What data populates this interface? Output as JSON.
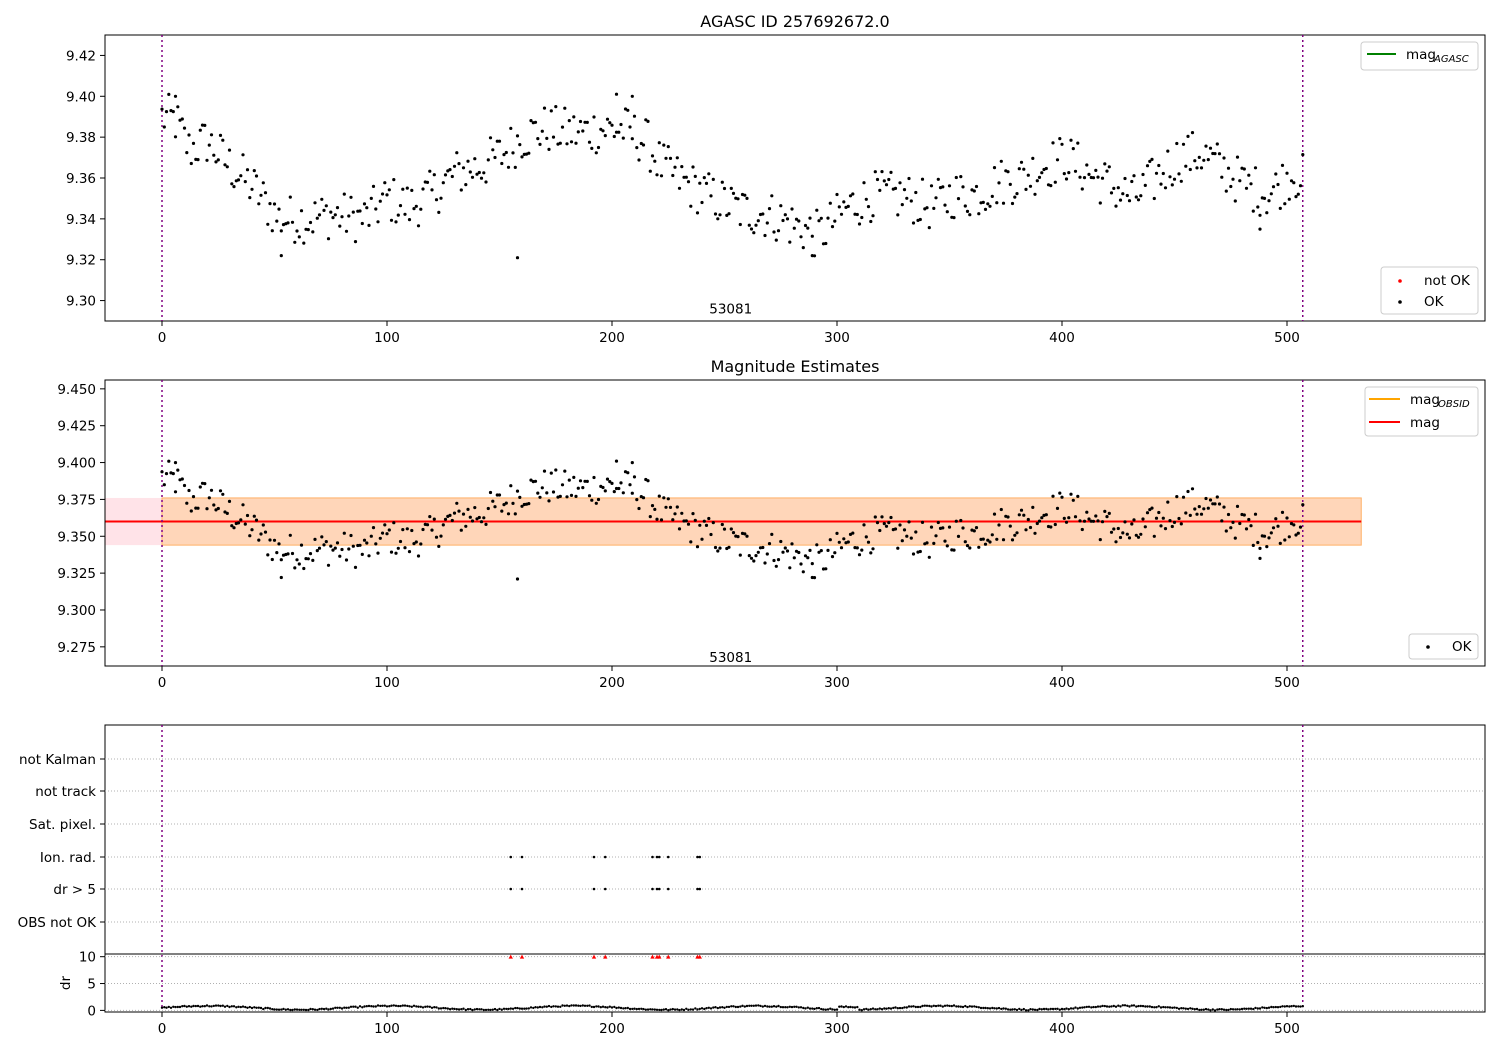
{
  "chart_data": [
    {
      "type": "scatter",
      "title": "AGASC ID 257692672.0",
      "xlabel": "",
      "ylabel": "",
      "xlim": [
        -25,
        590
      ],
      "ylim": [
        9.29,
        9.43
      ],
      "xticks": [
        "0",
        "100",
        "200",
        "300",
        "400",
        "500"
      ],
      "yticks": [
        "9.30",
        "9.32",
        "9.34",
        "9.36",
        "9.38",
        "9.40",
        "9.42"
      ],
      "vlines_x": [
        0,
        507
      ],
      "annotation": {
        "text": "53081",
        "x": 253,
        "y": 9.296
      },
      "legend_upper": {
        "position": "upper right",
        "entries": [
          {
            "label": "mag",
            "sub": "AGASC",
            "color": "#008000"
          }
        ]
      },
      "legend_lower": {
        "position": "lower right",
        "entries": [
          {
            "label": "not OK",
            "color": "#ff0000"
          },
          {
            "label": "OK",
            "color": "#000000"
          }
        ]
      },
      "anchors": [
        [
          0,
          9.39
        ],
        [
          6,
          9.388
        ],
        [
          12,
          9.374
        ],
        [
          20,
          9.378
        ],
        [
          30,
          9.366
        ],
        [
          40,
          9.356
        ],
        [
          52,
          9.34
        ],
        [
          65,
          9.34
        ],
        [
          75,
          9.342
        ],
        [
          90,
          9.34
        ],
        [
          100,
          9.35
        ],
        [
          110,
          9.346
        ],
        [
          120,
          9.352
        ],
        [
          130,
          9.362
        ],
        [
          142,
          9.366
        ],
        [
          152,
          9.372
        ],
        [
          160,
          9.38
        ],
        [
          170,
          9.384
        ],
        [
          185,
          9.382
        ],
        [
          195,
          9.384
        ],
        [
          205,
          9.384
        ],
        [
          215,
          9.378
        ],
        [
          222,
          9.366
        ],
        [
          232,
          9.358
        ],
        [
          245,
          9.35
        ],
        [
          258,
          9.344
        ],
        [
          270,
          9.342
        ],
        [
          283,
          9.336
        ],
        [
          292,
          9.332
        ],
        [
          305,
          9.346
        ],
        [
          318,
          9.352
        ],
        [
          332,
          9.35
        ],
        [
          342,
          9.346
        ],
        [
          352,
          9.352
        ],
        [
          362,
          9.352
        ],
        [
          372,
          9.358
        ],
        [
          382,
          9.36
        ],
        [
          392,
          9.366
        ],
        [
          402,
          9.37
        ],
        [
          412,
          9.362
        ],
        [
          422,
          9.356
        ],
        [
          432,
          9.35
        ],
        [
          442,
          9.36
        ],
        [
          452,
          9.37
        ],
        [
          462,
          9.372
        ],
        [
          472,
          9.364
        ],
        [
          482,
          9.356
        ],
        [
          492,
          9.352
        ],
        [
          502,
          9.362
        ],
        [
          507,
          9.36
        ]
      ],
      "outliers": [
        [
          53,
          9.322
        ],
        [
          158,
          9.321
        ],
        [
          289,
          9.322
        ],
        [
          202,
          9.401
        ],
        [
          209,
          9.4
        ],
        [
          6,
          9.4
        ],
        [
          488,
          9.335
        ]
      ],
      "n_points": 508
    },
    {
      "type": "scatter",
      "title": "Magnitude Estimates",
      "xlabel": "",
      "ylabel": "",
      "xlim": [
        -25,
        590
      ],
      "ylim": [
        9.262,
        9.456
      ],
      "xticks": [
        "0",
        "100",
        "200",
        "300",
        "400",
        "500"
      ],
      "yticks": [
        "9.275",
        "9.300",
        "9.325",
        "9.350",
        "9.375",
        "9.400",
        "9.425",
        "9.450"
      ],
      "vlines_x": [
        0,
        507
      ],
      "annotation": {
        "text": "53081",
        "x": 253,
        "y": 9.268
      },
      "mag": 9.36,
      "mag_obsid_band": [
        9.344,
        9.376
      ],
      "mag_band": [
        9.344,
        9.376
      ],
      "band_x_range": [
        -25,
        533
      ],
      "legend_upper": {
        "position": "upper right",
        "entries": [
          {
            "label": "mag",
            "sub": "OBSID",
            "color": "#ffa500"
          },
          {
            "label": "mag",
            "color": "#ff0000"
          }
        ]
      },
      "legend_lower": {
        "position": "lower right",
        "entries": [
          {
            "label": "OK",
            "color": "#000000"
          }
        ]
      }
    },
    {
      "type": "scatter",
      "title": "",
      "xlim": [
        -25,
        590
      ],
      "flag_rows": [
        "not Kalman",
        "not track",
        "Sat. pixel.",
        "Ion. rad.",
        "dr > 5",
        "OBS not OK"
      ],
      "flagged_x": [
        155,
        160,
        192,
        197,
        218,
        220,
        221,
        225,
        238,
        239
      ],
      "flagged_rows": [
        "Ion. rad.",
        "dr > 5"
      ]
    },
    {
      "type": "scatter",
      "title": "",
      "xlabel": "",
      "ylabel": "dr",
      "xlim": [
        -25,
        590
      ],
      "ylim": [
        -0.3,
        10.5
      ],
      "yticks": [
        "0",
        "5",
        "10"
      ],
      "xticks": [
        "0",
        "100",
        "200",
        "300",
        "400",
        "500"
      ],
      "clipped_value": 10,
      "clipped_x": [
        155,
        160,
        192,
        197,
        218,
        220,
        221,
        225,
        238,
        239
      ],
      "clipped_color": "#ff0000"
    }
  ]
}
